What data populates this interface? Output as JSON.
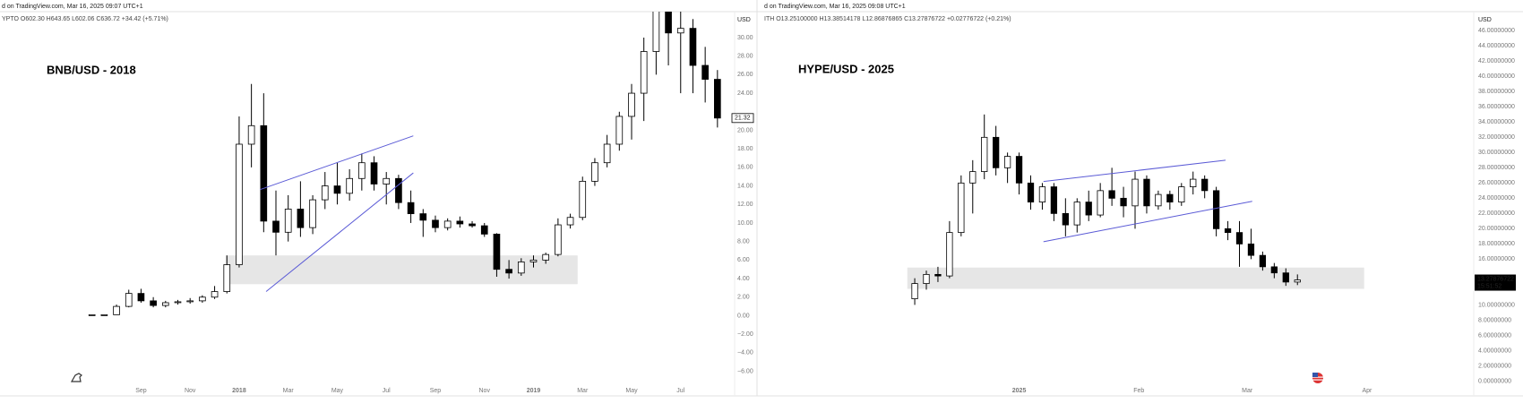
{
  "chart_data": [
    {
      "type": "candlestick",
      "title": "BNB/USD - 2018",
      "header": [
        "d on TradingView.com, Mar 16, 2025 09:07 UTC+1",
        "YPTO O602.30 H643.65 L602.06 C636.72 +34.42 (+5.71%)"
      ],
      "unit": "USD",
      "last_price_label": "21.32",
      "open": [
        0.1,
        0.1,
        0.1,
        1.0,
        2.4,
        1.6,
        1.1,
        1.4,
        1.5,
        1.6,
        2.0,
        2.6,
        5.5,
        18.5,
        20.5,
        10.2,
        9.0,
        11.5,
        9.5,
        12.5,
        14.0,
        13.2,
        14.8,
        16.5,
        14.2,
        14.8,
        12.2,
        11.0,
        10.3,
        9.5,
        10.2,
        9.9,
        9.7,
        8.8,
        5.0,
        4.6,
        5.8,
        6.0,
        6.6,
        9.8,
        10.6,
        14.5,
        16.5,
        18.5,
        21.5,
        24.0,
        28.5,
        33.0,
        30.5,
        31,
        27,
        25.5
      ],
      "high": [
        0.12,
        0.12,
        1.2,
        2.8,
        2.9,
        2.0,
        1.6,
        1.7,
        1.9,
        2.2,
        3.2,
        6.5,
        21.5,
        25.0,
        24,
        13.5,
        13,
        14.5,
        13,
        15.5,
        16.5,
        15.8,
        17.5,
        17.2,
        15.5,
        15.2,
        13.5,
        11.5,
        10.8,
        10.5,
        10.7,
        10.2,
        10,
        8.9,
        6,
        6.2,
        6.5,
        6.8,
        10.5,
        11.0,
        15,
        17,
        19.5,
        22,
        25,
        30,
        33.5,
        33.5,
        33,
        32,
        29,
        26.5
      ],
      "low": [
        0.1,
        0.1,
        0.1,
        0.9,
        1.4,
        0.9,
        0.9,
        1.2,
        1.3,
        1.4,
        1.8,
        2.4,
        5.2,
        16,
        9,
        6.5,
        8,
        8.5,
        8.8,
        11.5,
        12,
        12.4,
        13.5,
        13.5,
        12,
        11.5,
        10,
        8.5,
        9,
        9.2,
        9.5,
        9.5,
        8.5,
        4.2,
        4.0,
        4.3,
        5.2,
        5.6,
        6.4,
        9.4,
        10.3,
        14,
        16,
        17.8,
        19,
        21,
        26,
        27,
        24,
        24,
        23,
        20.3
      ],
      "close": [
        0.1,
        0.1,
        1.0,
        2.4,
        1.6,
        1.1,
        1.4,
        1.5,
        1.6,
        2.0,
        2.6,
        5.5,
        18.5,
        20.5,
        10.2,
        9.0,
        11.5,
        9.5,
        12.5,
        14.0,
        13.2,
        14.8,
        16.5,
        14.2,
        14.8,
        12.2,
        11.0,
        10.3,
        9.5,
        10.2,
        9.9,
        9.7,
        8.8,
        5.0,
        4.6,
        5.8,
        6.0,
        6.6,
        9.8,
        10.6,
        14.5,
        16.5,
        18.5,
        21.5,
        24.0,
        28.5,
        33.0,
        30.5,
        31,
        27,
        25.5,
        21.32
      ],
      "zone": {
        "low": 3.4,
        "high": 6.5,
        "x": [
          10.9,
          39.6
        ]
      },
      "trendlines": [
        {
          "x": [
            13.7,
            26.2
          ],
          "y": [
            13.6,
            19.4
          ]
        },
        {
          "x": [
            14.2,
            26.2
          ],
          "y": [
            2.6,
            15.4
          ]
        }
      ],
      "xlim": [
        -7.5,
        52.4
      ],
      "ylim": [
        -7.3,
        32.8
      ],
      "xticks": [
        {
          "value": 4,
          "label": "Sep"
        },
        {
          "value": 8,
          "label": "Nov"
        },
        {
          "value": 12,
          "label": "2018"
        },
        {
          "value": 16,
          "label": "Mar"
        },
        {
          "value": 20,
          "label": "May"
        },
        {
          "value": 24,
          "label": "Jul"
        },
        {
          "value": 28,
          "label": "Sep"
        },
        {
          "value": 32,
          "label": "Nov"
        },
        {
          "value": 36,
          "label": "2019"
        },
        {
          "value": 40,
          "label": "Mar"
        },
        {
          "value": 44,
          "label": "May"
        },
        {
          "value": 48,
          "label": "Jul"
        }
      ],
      "yticks": [
        {
          "value": 30,
          "label": "30.00"
        },
        {
          "value": 28,
          "label": "28.00"
        },
        {
          "value": 26,
          "label": "26.00"
        },
        {
          "value": 24,
          "label": "24.00"
        },
        {
          "value": 20,
          "label": "20.00"
        },
        {
          "value": 18,
          "label": "18.00"
        },
        {
          "value": 16,
          "label": "16.00"
        },
        {
          "value": 14,
          "label": "14.00"
        },
        {
          "value": 12,
          "label": "12.00"
        },
        {
          "value": 10,
          "label": "10.00"
        },
        {
          "value": 8,
          "label": "8.00"
        },
        {
          "value": 6,
          "label": "6.00"
        },
        {
          "value": 4,
          "label": "4.00"
        },
        {
          "value": 2,
          "label": "2.00"
        },
        {
          "value": 0,
          "label": "0.00"
        },
        {
          "value": -2,
          "label": "−2.00"
        },
        {
          "value": -4,
          "label": "−4.00"
        },
        {
          "value": -6,
          "label": "−6.00"
        }
      ],
      "up_color": "#ffffff",
      "down_color": "#000000",
      "line_color": "#5b5bd6",
      "zone_color": "#e6e6e6"
    },
    {
      "type": "candlestick",
      "title": "HYPE/USD - 2025",
      "header": [
        "d on TradingView.com, Mar 16, 2025 09:08 UTC+1",
        "ITH O13.25100000 H13.38514178 L12.86876865 C13.27876722 +0.02776722 (+0.21%)"
      ],
      "unit": "USD",
      "last_price_label": "13.27876722",
      "countdown": "15:51:52",
      "open": [
        10.8,
        12.8,
        14,
        13.8,
        19.5,
        26,
        27.5,
        32,
        28,
        29.5,
        26,
        23.5,
        25.5,
        22,
        20.5,
        23.5,
        21.8,
        25,
        24,
        23,
        26.5,
        23,
        24.5,
        23.5,
        25.5,
        26.5,
        25,
        20,
        19.5,
        18,
        16.5,
        15,
        14.2,
        13.0
      ],
      "high": [
        13.5,
        14.5,
        15,
        21,
        27,
        29,
        35,
        33.5,
        30,
        30,
        27,
        26,
        26,
        24,
        24,
        25,
        26,
        28,
        25.5,
        27.5,
        27,
        25,
        25,
        26,
        27.5,
        27,
        25.5,
        21,
        21,
        20,
        17,
        15.5,
        14.8,
        14.0
      ],
      "low": [
        10,
        12,
        13,
        13.5,
        19,
        22,
        26.5,
        27,
        26,
        24.5,
        22.5,
        22.5,
        21,
        19,
        19.5,
        21,
        21.5,
        23,
        21.5,
        20,
        22,
        22.5,
        22.5,
        23,
        24.5,
        24,
        19,
        18.5,
        15,
        16,
        14.5,
        13.5,
        12.5,
        12.6
      ],
      "close": [
        12.8,
        14,
        13.8,
        19.5,
        26,
        27.5,
        32,
        28,
        29.5,
        26,
        23.5,
        25.5,
        22,
        20.5,
        23.5,
        21.8,
        25,
        24,
        23,
        26.5,
        23,
        24.5,
        23.5,
        25.5,
        26.5,
        25,
        20,
        19.5,
        18,
        16.5,
        15,
        14.2,
        13.0,
        13.27876722
      ],
      "zone": {
        "low": 12.1,
        "high": 14.9,
        "x": [
          -0.64,
          38.75
        ]
      },
      "trendlines": [
        {
          "x": [
            11.1,
            26.8
          ],
          "y": [
            26.2,
            29.0
          ]
        },
        {
          "x": [
            11.1,
            29.1
          ],
          "y": [
            18.3,
            23.6
          ]
        }
      ],
      "xlim": [
        -13.6,
        48.2
      ],
      "ylim": [
        -0.3,
        48.5
      ],
      "xticks": [
        {
          "value": 9,
          "label": "2025"
        },
        {
          "value": 19.33,
          "label": "Feb"
        },
        {
          "value": 28.67,
          "label": "Mar"
        },
        {
          "value": 39,
          "label": "Apr"
        }
      ],
      "yticks": [
        {
          "value": 46,
          "label": "46.00000000"
        },
        {
          "value": 44,
          "label": "44.00000000"
        },
        {
          "value": 42,
          "label": "42.00000000"
        },
        {
          "value": 40,
          "label": "40.00000000"
        },
        {
          "value": 38,
          "label": "38.00000000"
        },
        {
          "value": 36,
          "label": "36.00000000"
        },
        {
          "value": 34,
          "label": "34.00000000"
        },
        {
          "value": 32,
          "label": "32.00000000"
        },
        {
          "value": 30,
          "label": "30.00000000"
        },
        {
          "value": 28,
          "label": "28.00000000"
        },
        {
          "value": 26,
          "label": "26.00000000"
        },
        {
          "value": 24,
          "label": "24.00000000"
        },
        {
          "value": 22,
          "label": "22.00000000"
        },
        {
          "value": 20,
          "label": "20.00000000"
        },
        {
          "value": 18,
          "label": "18.00000000"
        },
        {
          "value": 16,
          "label": "16.00000000"
        },
        {
          "value": 10,
          "label": "10.00000000"
        },
        {
          "value": 8,
          "label": "8.00000000"
        },
        {
          "value": 6,
          "label": "6.00000000"
        },
        {
          "value": 4,
          "label": "4.00000000"
        },
        {
          "value": 2,
          "label": "2.00000000"
        },
        {
          "value": 0,
          "label": "0.00000000"
        }
      ],
      "up_color": "#ffffff",
      "down_color": "#000000",
      "line_color": "#5b5bd6",
      "zone_color": "#e6e6e6"
    }
  ]
}
